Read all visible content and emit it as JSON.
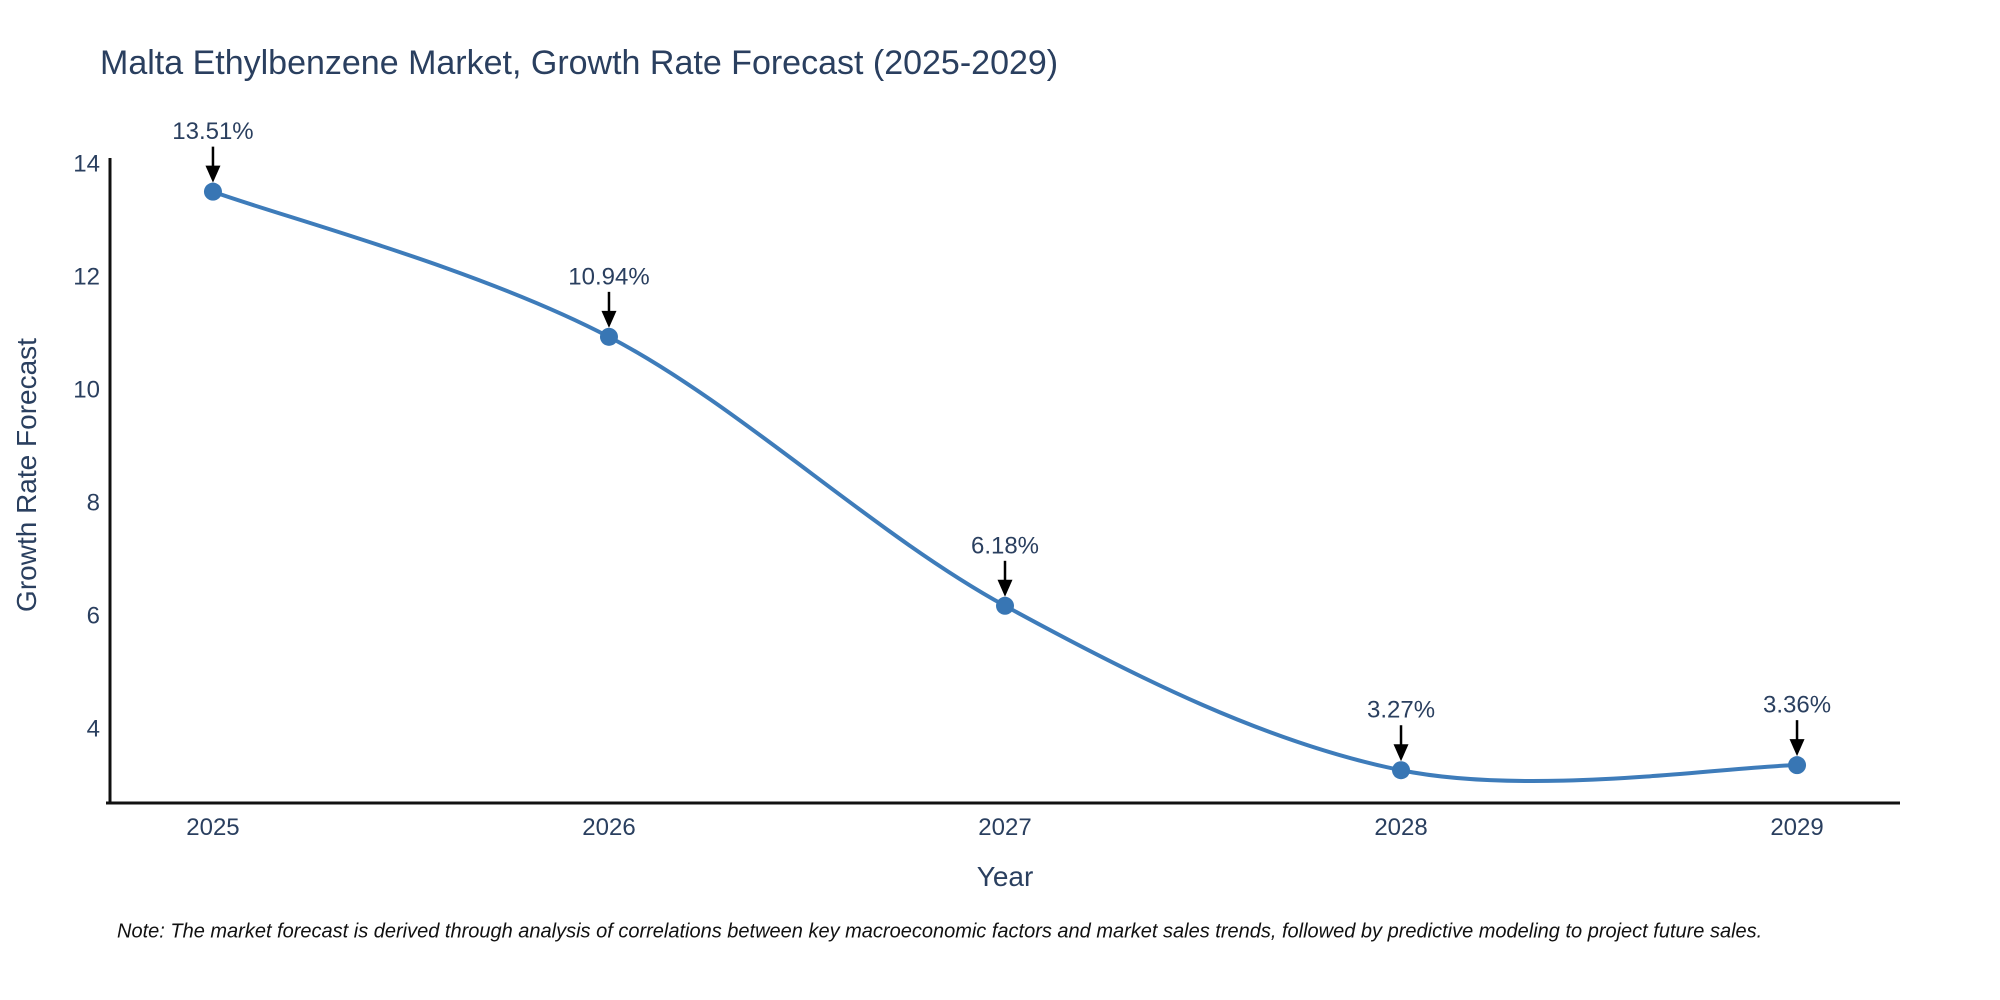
{
  "title": "Malta Ethylbenzene Market, Growth Rate Forecast (2025-2029)",
  "note": "Note: The market forecast is derived through analysis of correlations between key macroeconomic factors and market sales trends, followed by predictive modeling to project future sales.",
  "chart_data": {
    "type": "line",
    "title": "Malta Ethylbenzene Market, Growth Rate Forecast (2025-2029)",
    "xlabel": "Year",
    "ylabel": "Growth Rate Forecast",
    "x": [
      2025,
      2026,
      2027,
      2028,
      2029
    ],
    "values": [
      13.51,
      10.94,
      6.18,
      3.27,
      3.36
    ],
    "point_labels": [
      "13.51%",
      "10.94%",
      "6.18%",
      "3.27%",
      "3.36%"
    ],
    "yticks": [
      4,
      6,
      8,
      10,
      12,
      14
    ],
    "xticks": [
      "2025",
      "2026",
      "2027",
      "2028",
      "2029"
    ],
    "ylim": [
      2.69,
      14.07
    ],
    "xlim": [
      2024.74,
      2029.26
    ],
    "line_shape": "spline",
    "grid": false,
    "legend": "none",
    "colors": {
      "line": "#3e7cba",
      "marker": "#3876b4",
      "axis": "#111111",
      "tick_text": "#2a3f5f",
      "annotation_text": "#2a3f5f",
      "arrow": "#000000",
      "background": "#ffffff"
    }
  }
}
